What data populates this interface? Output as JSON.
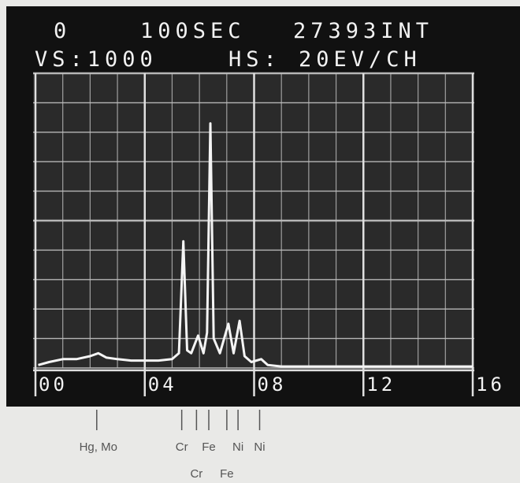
{
  "chart_data": {
    "type": "line",
    "header": [
      "0",
      "100SEC",
      "27393INT",
      "VS:1000",
      "HS: 20EV/CH"
    ],
    "x": [
      0.1,
      0.5,
      1.0,
      1.5,
      2.0,
      2.3,
      2.6,
      3.0,
      3.5,
      4.0,
      4.5,
      5.0,
      5.25,
      5.41,
      5.55,
      5.7,
      5.95,
      6.15,
      6.28,
      6.4,
      6.52,
      6.75,
      7.06,
      7.25,
      7.47,
      7.65,
      7.9,
      8.26,
      8.5,
      9.0,
      10.0,
      11.0,
      12.0,
      13.0,
      14.0,
      15.0,
      16.0
    ],
    "series": [
      {
        "color": "#f4f4f4",
        "values": [
          0.1,
          0.2,
          0.3,
          0.3,
          0.4,
          0.5,
          0.35,
          0.3,
          0.25,
          0.25,
          0.25,
          0.3,
          0.5,
          4.3,
          0.6,
          0.5,
          1.1,
          0.5,
          1.2,
          8.3,
          1.0,
          0.5,
          1.5,
          0.5,
          1.6,
          0.4,
          0.2,
          0.3,
          0.1,
          0.05,
          0.05,
          0.05,
          0.05,
          0.05,
          0.05,
          0.05,
          0.05
        ]
      }
    ],
    "xlim": [
      0,
      16
    ],
    "ylim": [
      0,
      10
    ],
    "xticks": [
      {
        "value": 0,
        "label": "00"
      },
      {
        "value": 4,
        "label": "04"
      },
      {
        "value": 8,
        "label": "08"
      },
      {
        "value": 12,
        "label": "12"
      },
      {
        "value": 16,
        "label": "16"
      }
    ],
    "yticks": [
      0,
      1,
      2,
      3,
      4,
      5,
      6,
      7,
      8,
      9,
      10
    ],
    "grid": true,
    "annotations": [
      {
        "label": "Hg, Mo",
        "x": 2.3
      },
      {
        "label": "Cr",
        "x": 5.41
      },
      {
        "label": "Cr",
        "x": 5.95
      },
      {
        "label": "Fe",
        "x": 6.4
      },
      {
        "label": "Fe",
        "x": 7.06
      },
      {
        "label": "Ni",
        "x": 7.47
      },
      {
        "label": "Ni",
        "x": 8.26
      }
    ]
  }
}
